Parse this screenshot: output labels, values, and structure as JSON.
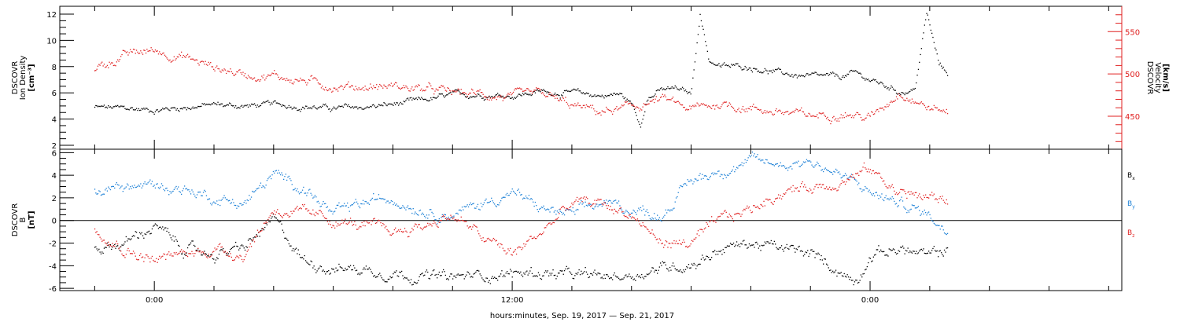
{
  "chart_data": [
    {
      "type": "scatter",
      "panel": "plasma",
      "ylabel_left": [
        "DSCOVR",
        "Ion Density",
        "[cm⁻³]"
      ],
      "ylabel_right": [
        "DSCOVR",
        "Velocity",
        "[km/s]"
      ],
      "ylim_left": [
        1.7,
        12.6
      ],
      "yticks_left": [
        2,
        4,
        6,
        8,
        10,
        12
      ],
      "ylim_right": [
        411,
        580
      ],
      "yticks_right": [
        450,
        500,
        550
      ],
      "right_axis_color": "#e02020",
      "grid": false,
      "series": [
        {
          "color": "#000000",
          "axis": "left",
          "points": [
            [
              -2.0,
              4.9
            ],
            [
              -1.0,
              4.8
            ],
            [
              0.0,
              4.7
            ],
            [
              1.0,
              4.9
            ],
            [
              2.0,
              5.1
            ],
            [
              3.0,
              5.0
            ],
            [
              4.0,
              5.1
            ],
            [
              5.0,
              5.0
            ],
            [
              6.0,
              4.8
            ],
            [
              7.0,
              4.9
            ],
            [
              8.0,
              5.1
            ],
            [
              9.0,
              5.4
            ],
            [
              10.0,
              5.8
            ],
            [
              11.0,
              5.9
            ],
            [
              12.0,
              5.8
            ],
            [
              13.0,
              6.1
            ],
            [
              14.0,
              6.0
            ],
            [
              15.0,
              5.8
            ],
            [
              15.6,
              5.9
            ],
            [
              16.0,
              5.2
            ],
            [
              16.3,
              3.5
            ],
            [
              16.5,
              5.6
            ],
            [
              17.0,
              6.2
            ],
            [
              17.5,
              6.3
            ],
            [
              18.0,
              5.9
            ],
            [
              18.3,
              12.1
            ],
            [
              18.6,
              8.5
            ],
            [
              19.0,
              8.0
            ],
            [
              20.0,
              8.0
            ],
            [
              21.0,
              7.5
            ],
            [
              22.0,
              7.2
            ],
            [
              23.0,
              7.2
            ],
            [
              23.5,
              7.5
            ],
            [
              24.0,
              7.0
            ],
            [
              25.0,
              6.1
            ],
            [
              25.5,
              6.2
            ],
            [
              25.9,
              12.1
            ],
            [
              26.3,
              8.2
            ],
            [
              26.6,
              7.5
            ]
          ]
        },
        {
          "color": "#e02020",
          "axis": "right",
          "points": [
            [
              -2.0,
              505
            ],
            [
              -1.0,
              522
            ],
            [
              0.0,
              528
            ],
            [
              1.0,
              520
            ],
            [
              2.0,
              508
            ],
            [
              3.0,
              500
            ],
            [
              4.0,
              498
            ],
            [
              5.0,
              492
            ],
            [
              6.0,
              486
            ],
            [
              7.0,
              485
            ],
            [
              8.0,
              486
            ],
            [
              9.0,
              482
            ],
            [
              10.0,
              478
            ],
            [
              11.0,
              476
            ],
            [
              12.0,
              472
            ],
            [
              13.0,
              476
            ],
            [
              14.0,
              462
            ],
            [
              15.0,
              455
            ],
            [
              16.0,
              460
            ],
            [
              17.0,
              470
            ],
            [
              18.0,
              458
            ],
            [
              19.0,
              465
            ],
            [
              20.0,
              460
            ],
            [
              21.0,
              455
            ],
            [
              22.0,
              450
            ],
            [
              23.0,
              455
            ],
            [
              24.0,
              448
            ],
            [
              25.0,
              480
            ],
            [
              26.0,
              460
            ],
            [
              26.6,
              455
            ]
          ]
        }
      ]
    },
    {
      "type": "scatter",
      "panel": "magnetic-field",
      "ylabel_left": [
        "DSCOVR",
        "B",
        "[nT]"
      ],
      "ylim": [
        -6.2,
        6.3
      ],
      "yticks": [
        -6,
        -4,
        -2,
        0,
        2,
        4,
        6
      ],
      "zero_line": true,
      "grid": false,
      "legend_position": "right",
      "series": [
        {
          "name_main": "B",
          "name_sub": "x",
          "color": "#000000",
          "points": [
            [
              -2.0,
              -2.5
            ],
            [
              -1.0,
              -2.0
            ],
            [
              0.0,
              -0.5
            ],
            [
              1.0,
              -2.5
            ],
            [
              2.0,
              -3.0
            ],
            [
              3.0,
              -2.5
            ],
            [
              4.0,
              0.0
            ],
            [
              5.0,
              -3.5
            ],
            [
              6.0,
              -4.2
            ],
            [
              7.0,
              -4.3
            ],
            [
              8.0,
              -4.6
            ],
            [
              9.0,
              -4.9
            ],
            [
              10.0,
              -5.1
            ],
            [
              11.0,
              -4.8
            ],
            [
              12.0,
              -4.7
            ],
            [
              13.0,
              -4.6
            ],
            [
              14.0,
              -4.9
            ],
            [
              15.0,
              -5.0
            ],
            [
              16.0,
              -4.8
            ],
            [
              17.0,
              -4.2
            ],
            [
              18.0,
              -3.8
            ],
            [
              19.0,
              -2.5
            ],
            [
              20.0,
              -2.0
            ],
            [
              21.0,
              -2.5
            ],
            [
              22.0,
              -3.0
            ],
            [
              23.0,
              -4.5
            ],
            [
              23.5,
              -5.4
            ],
            [
              24.0,
              -3.0
            ],
            [
              25.0,
              -2.5
            ],
            [
              26.0,
              -3.2
            ],
            [
              26.6,
              -2.5
            ]
          ]
        },
        {
          "name_main": "B",
          "name_sub": "y",
          "color": "#1a7fd6",
          "points": [
            [
              -2.0,
              2.5
            ],
            [
              -1.0,
              3.0
            ],
            [
              0.0,
              3.1
            ],
            [
              1.0,
              2.8
            ],
            [
              2.0,
              2.0
            ],
            [
              3.0,
              1.5
            ],
            [
              4.0,
              4.0
            ],
            [
              5.0,
              3.0
            ],
            [
              6.0,
              0.5
            ],
            [
              7.0,
              1.5
            ],
            [
              8.0,
              2.0
            ],
            [
              9.0,
              1.0
            ],
            [
              10.0,
              0.5
            ],
            [
              11.0,
              1.5
            ],
            [
              12.0,
              2.5
            ],
            [
              13.0,
              1.0
            ],
            [
              14.0,
              0.5
            ],
            [
              15.0,
              1.5
            ],
            [
              16.0,
              1.0
            ],
            [
              17.0,
              0.5
            ],
            [
              18.0,
              3.5
            ],
            [
              19.0,
              4.5
            ],
            [
              20.0,
              5.2
            ],
            [
              21.0,
              5.0
            ],
            [
              22.0,
              5.3
            ],
            [
              23.0,
              4.0
            ],
            [
              24.0,
              2.5
            ],
            [
              25.0,
              1.5
            ],
            [
              26.0,
              0.5
            ],
            [
              26.6,
              -1.0
            ]
          ]
        },
        {
          "name_main": "B",
          "name_sub": "z",
          "color": "#e02020",
          "points": [
            [
              -2.0,
              -0.5
            ],
            [
              -1.0,
              -2.5
            ],
            [
              0.0,
              -3.5
            ],
            [
              1.0,
              -3.0
            ],
            [
              2.0,
              -2.5
            ],
            [
              3.0,
              -3.0
            ],
            [
              4.0,
              1.0
            ],
            [
              5.0,
              0.5
            ],
            [
              6.0,
              0.0
            ],
            [
              7.0,
              -0.5
            ],
            [
              8.0,
              -1.0
            ],
            [
              9.0,
              -0.5
            ],
            [
              10.0,
              0.5
            ],
            [
              11.0,
              -1.5
            ],
            [
              12.0,
              -3.0
            ],
            [
              13.0,
              -1.0
            ],
            [
              14.0,
              1.5
            ],
            [
              15.0,
              1.5
            ],
            [
              16.0,
              0.5
            ],
            [
              17.0,
              -2.0
            ],
            [
              18.0,
              -2.0
            ],
            [
              19.0,
              0.0
            ],
            [
              20.0,
              1.0
            ],
            [
              21.0,
              2.5
            ],
            [
              22.0,
              3.0
            ],
            [
              23.0,
              3.5
            ],
            [
              24.0,
              4.5
            ],
            [
              25.0,
              2.5
            ],
            [
              26.0,
              2.0
            ],
            [
              26.6,
              1.8
            ]
          ]
        }
      ]
    }
  ],
  "x_axis": {
    "label": "hours:minutes, Sep. 19, 2017 — Sep. 21, 2017",
    "xlim": [
      -3.17,
      32.44
    ],
    "tick_labels": [
      {
        "x": 0,
        "text": "0:00"
      },
      {
        "x": 12,
        "text": "12:00"
      },
      {
        "x": 24,
        "text": "0:00"
      }
    ]
  }
}
